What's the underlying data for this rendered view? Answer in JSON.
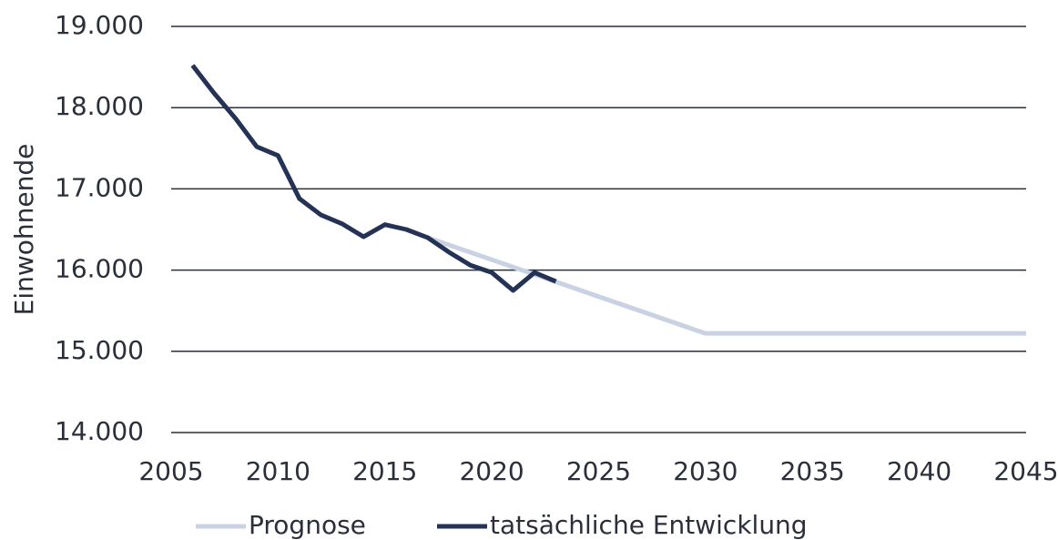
{
  "chart_data": {
    "type": "line",
    "y_label": "Einwohnende",
    "xlim": [
      2005,
      2045
    ],
    "xticks": [
      2005,
      2010,
      2015,
      2020,
      2025,
      2030,
      2035,
      2040,
      2045
    ],
    "ylim": [
      14000,
      19000
    ],
    "yticks": [
      {
        "value": 14000,
        "label": "14.000"
      },
      {
        "value": 15000,
        "label": "15.000"
      },
      {
        "value": 16000,
        "label": "16.000"
      },
      {
        "value": 17000,
        "label": "17.000"
      },
      {
        "value": 18000,
        "label": "18.000"
      },
      {
        "value": 19000,
        "label": "19.000"
      }
    ],
    "grid": true,
    "legend": "bottom",
    "series": [
      {
        "name": "Prognose",
        "color": "#c9d2e3",
        "x": [
          2017,
          2030,
          2045
        ],
        "values": [
          16400,
          15220,
          15220
        ]
      },
      {
        "name": "tatsächliche Entwicklung",
        "color": "#243355",
        "x": [
          2006,
          2007,
          2008,
          2009,
          2010,
          2011,
          2012,
          2013,
          2014,
          2015,
          2016,
          2017,
          2018,
          2019,
          2020,
          2021,
          2022,
          2023
        ],
        "values": [
          18520,
          18180,
          17870,
          17520,
          17410,
          16880,
          16680,
          16570,
          16410,
          16560,
          16500,
          16400,
          16220,
          16060,
          15970,
          15750,
          15970,
          15860
        ]
      }
    ]
  }
}
